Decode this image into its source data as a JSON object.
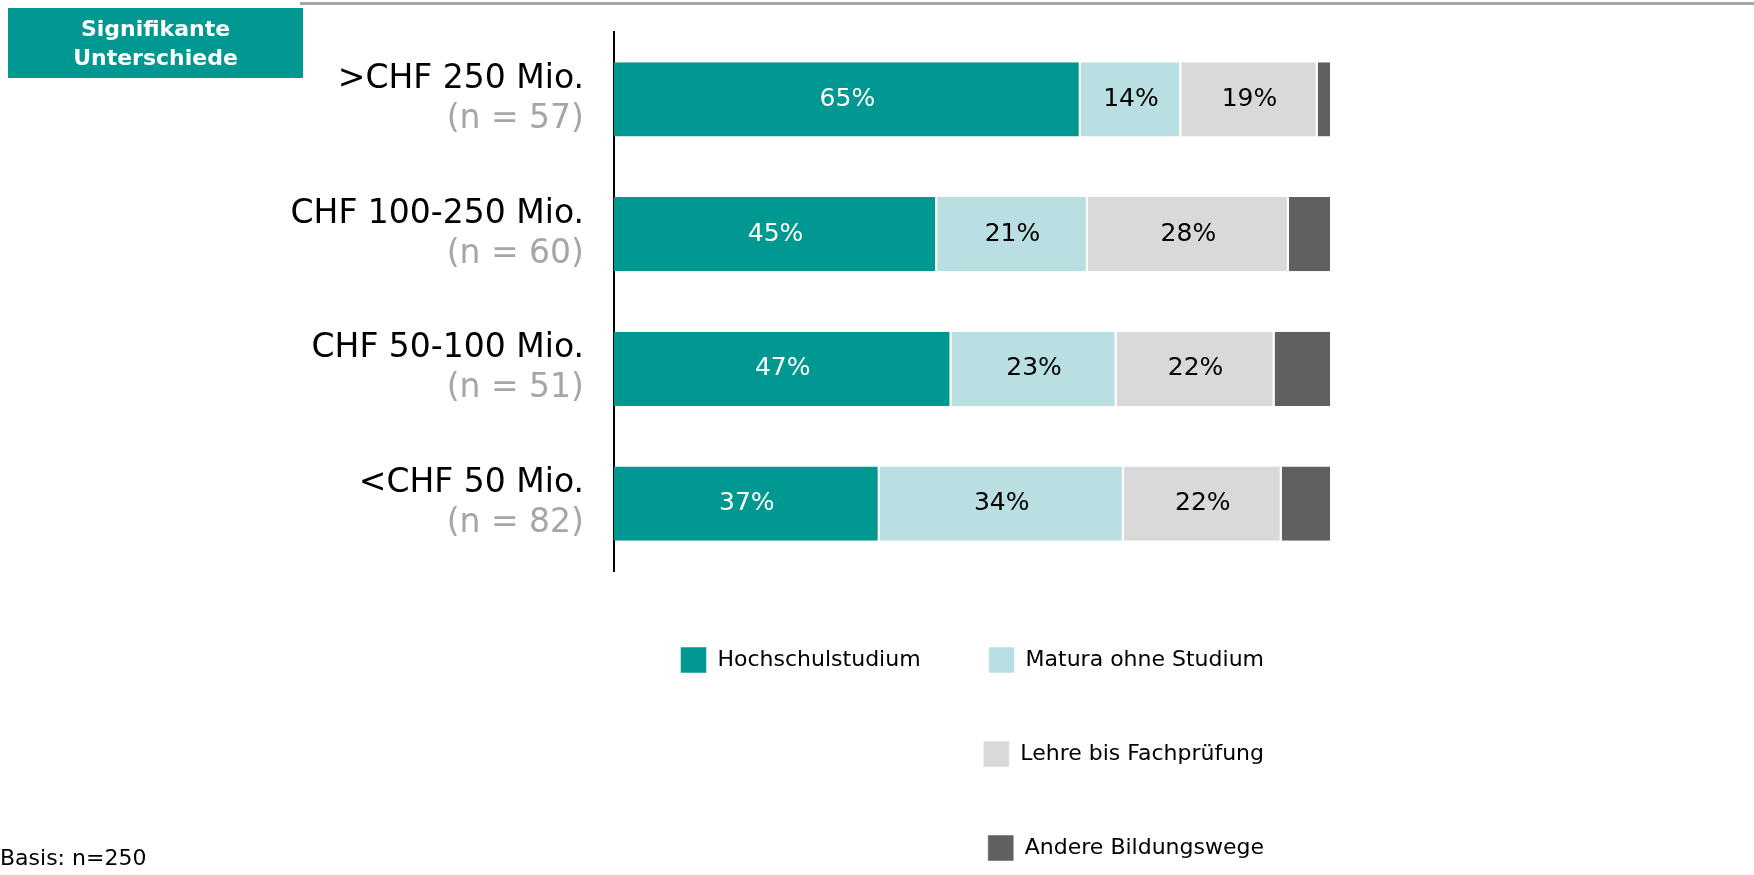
{
  "chart_data": {
    "type": "bar",
    "orientation": "horizontal",
    "stacked": true,
    "categories": [
      ">CHF 250 Mio.\n(n = 57)",
      "CHF 100-250 Mio.\n(n = 60)",
      "CHF 50-100 Mio.\n(n = 51)",
      "<CHF 50 Mio.\n(n = 82)"
    ],
    "series": [
      {
        "name": "Hochschulstudium",
        "color": "#009890",
        "values": [
          65,
          45,
          47,
          37
        ],
        "value_labels": [
          "65%",
          "45%",
          "47%",
          "37%"
        ]
      },
      {
        "name": "Matura ohne Studium",
        "color": "#badfe2",
        "values": [
          14,
          21,
          23,
          34
        ],
        "value_labels": [
          "14%",
          "21%",
          "23%",
          "34%"
        ]
      },
      {
        "name": "Lehre bis Fachprüfung",
        "color": "#d9d9d9",
        "values": [
          19,
          28,
          22,
          22
        ],
        "value_labels": [
          "19%",
          "28%",
          "22%",
          "22%"
        ]
      },
      {
        "name": "Andere Bildungswege",
        "color": "#606060",
        "values": [
          2,
          6,
          8,
          7
        ]
      }
    ],
    "xlim": [
      0,
      100
    ],
    "tick_labels": "y",
    "grid": false,
    "legend": "bottom",
    "annotations": [
      "Signifikante Unterschiede",
      "Basis: n=250"
    ]
  }
}
